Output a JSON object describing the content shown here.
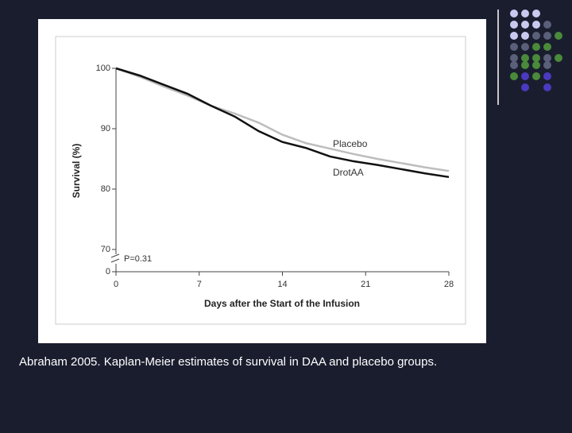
{
  "chart_data": {
    "type": "line",
    "x_label": "Days after the Start of the Infusion",
    "y_label": "Survival (%)",
    "x": [
      0,
      2,
      4,
      6,
      8,
      10,
      12,
      14,
      16,
      18,
      20,
      22,
      24,
      26,
      28
    ],
    "series": [
      {
        "name": "Placebo",
        "color": "#bdbdbd",
        "values": [
          100,
          98.6,
          97,
          95.5,
          93.8,
          92.5,
          91,
          89,
          87.6,
          86.7,
          85.8,
          85,
          84.3,
          83.6,
          83
        ]
      },
      {
        "name": "DrotAA",
        "color": "#111111",
        "values": [
          100,
          98.8,
          97.3,
          95.8,
          93.8,
          92,
          89.6,
          87.8,
          86.8,
          85.4,
          84.6,
          84,
          83.3,
          82.6,
          82
        ]
      }
    ],
    "xlim": [
      0,
      28
    ],
    "xticks": [
      0,
      7,
      14,
      21,
      28
    ],
    "ylim": [
      0,
      100
    ],
    "yticks": [
      0,
      70,
      80,
      90,
      100
    ],
    "ybreak": [
      0,
      70
    ],
    "annotation": "P=0.31"
  },
  "caption": "Abraham 2005. Kaplan-Meier estimates of survival in DAA and placebo groups."
}
